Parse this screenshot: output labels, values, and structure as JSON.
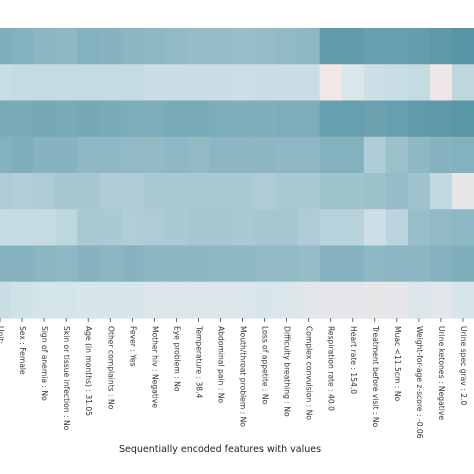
{
  "chart_data": {
    "type": "heatmap",
    "title": "",
    "xlabel": "Sequentially encoded features with values",
    "ylabel": "",
    "legend": "none",
    "grid": false,
    "colors": {
      "low": "#f3e6e6",
      "mid": "#d6e6ec",
      "high": "#3f8597"
    },
    "value_range": [
      0,
      1
    ],
    "x_tick_labels": [
      "Unit: ...",
      "Sex : Female",
      "Sign of anemia : No",
      "Skin or tissue infection : No",
      "Age (in months) : 31.05",
      "Other complaints : No",
      "Fever : Yes",
      "Mother hiv : Negative",
      "Eye problem : No",
      "Temperature : 38.4",
      "Abdominal pain : No",
      "Mouth/throat problem : No",
      "Loss of appetite : No",
      "Difficulty breathing : No",
      "Complex convulsion : No",
      "Respiration rate : 40.0",
      "Heart rate : 154.0",
      "Treatment before visit : No",
      "Muac <11.5cm : No",
      "Weight-for-age z-score : -0.06",
      "Urine ketones : Negative",
      "Urine spec grav : 2.0"
    ],
    "rows": [
      [
        0.62,
        0.6,
        0.56,
        0.54,
        0.6,
        0.58,
        0.56,
        0.54,
        0.52,
        0.5,
        0.5,
        0.48,
        0.5,
        0.52,
        0.54,
        0.8,
        0.8,
        0.76,
        0.76,
        0.78,
        0.82,
        0.86
      ],
      [
        0.2,
        0.22,
        0.22,
        0.22,
        0.22,
        0.22,
        0.22,
        0.2,
        0.2,
        0.2,
        0.2,
        0.18,
        0.2,
        0.2,
        0.2,
        0.0,
        0.1,
        0.18,
        0.2,
        0.22,
        0.02,
        0.26
      ],
      [
        0.66,
        0.66,
        0.68,
        0.66,
        0.68,
        0.66,
        0.64,
        0.64,
        0.66,
        0.66,
        0.64,
        0.62,
        0.62,
        0.64,
        0.64,
        0.76,
        0.76,
        0.74,
        0.76,
        0.8,
        0.82,
        0.84
      ],
      [
        0.6,
        0.62,
        0.58,
        0.58,
        0.54,
        0.54,
        0.52,
        0.52,
        0.54,
        0.52,
        0.56,
        0.56,
        0.56,
        0.54,
        0.54,
        0.6,
        0.6,
        0.36,
        0.46,
        0.54,
        0.58,
        0.6
      ],
      [
        0.36,
        0.34,
        0.36,
        0.4,
        0.4,
        0.36,
        0.36,
        0.38,
        0.38,
        0.38,
        0.38,
        0.38,
        0.36,
        0.38,
        0.38,
        0.44,
        0.44,
        0.46,
        0.5,
        0.44,
        0.24,
        0.04
      ],
      [
        0.22,
        0.22,
        0.22,
        0.26,
        0.38,
        0.38,
        0.34,
        0.36,
        0.38,
        0.4,
        0.4,
        0.38,
        0.4,
        0.4,
        0.36,
        0.3,
        0.3,
        0.18,
        0.28,
        0.48,
        0.52,
        0.54
      ],
      [
        0.58,
        0.58,
        0.56,
        0.54,
        0.58,
        0.56,
        0.58,
        0.56,
        0.56,
        0.56,
        0.54,
        0.54,
        0.52,
        0.52,
        0.5,
        0.58,
        0.58,
        0.54,
        0.56,
        0.56,
        0.58,
        0.62
      ],
      [
        0.2,
        0.16,
        0.14,
        0.14,
        0.12,
        0.12,
        0.12,
        0.1,
        0.1,
        0.1,
        0.1,
        0.1,
        0.12,
        0.1,
        0.08,
        0.06,
        0.06,
        0.04,
        0.06,
        0.1,
        0.08,
        0.12
      ]
    ]
  }
}
